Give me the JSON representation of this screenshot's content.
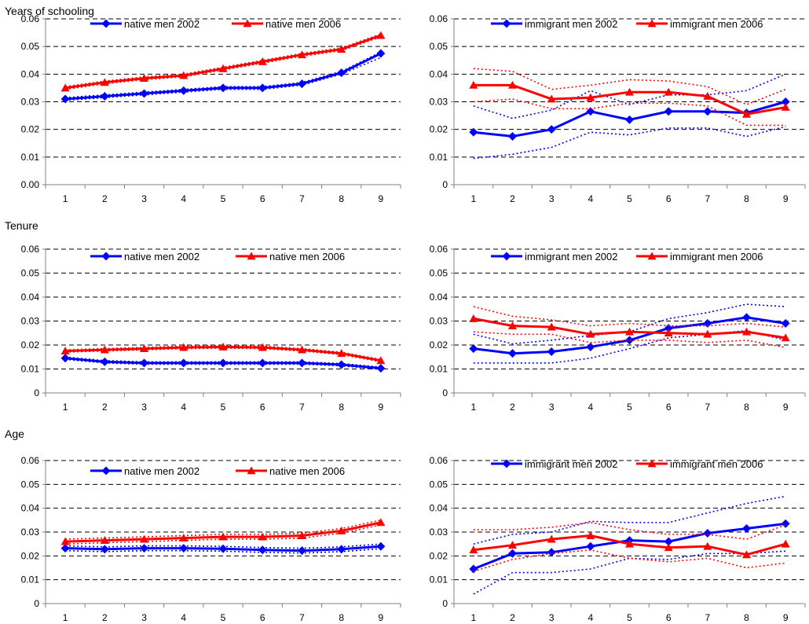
{
  "sections": [
    {
      "title": "Years of schooling"
    },
    {
      "title": "Tenure"
    },
    {
      "title": "Age"
    }
  ],
  "colors": {
    "series_2002": "#0000ff",
    "series_2006": "#ff0000",
    "grid": "#000000",
    "axis": "#808080"
  },
  "chart_data": [
    {
      "type": "line",
      "title": "",
      "x": [
        1,
        2,
        3,
        4,
        5,
        6,
        7,
        8,
        9
      ],
      "ylim": [
        0,
        0.06
      ],
      "yticks": [
        "0.00",
        "0.01",
        "0.02",
        "0.03",
        "0.04",
        "0.05",
        "0.06"
      ],
      "legend_position": "top",
      "series": [
        {
          "name": "native men 2002",
          "color": "#0000ff",
          "marker": "diamond",
          "values": [
            0.031,
            0.032,
            0.033,
            0.034,
            0.035,
            0.035,
            0.0365,
            0.0405,
            0.0475
          ],
          "ci_lower": [
            0.0305,
            0.0315,
            0.0325,
            0.0335,
            0.0345,
            0.0345,
            0.036,
            0.04,
            0.046
          ],
          "ci_upper": [
            0.0315,
            0.0325,
            0.0335,
            0.0345,
            0.0355,
            0.0355,
            0.037,
            0.041,
            0.048
          ]
        },
        {
          "name": "native men 2006",
          "color": "#ff0000",
          "marker": "triangle",
          "values": [
            0.035,
            0.037,
            0.0385,
            0.0395,
            0.042,
            0.0445,
            0.047,
            0.049,
            0.054
          ],
          "ci_lower": [
            0.0345,
            0.0365,
            0.038,
            0.039,
            0.0415,
            0.044,
            0.0465,
            0.0485,
            0.0535
          ],
          "ci_upper": [
            0.0355,
            0.0375,
            0.039,
            0.04,
            0.0425,
            0.045,
            0.0475,
            0.0495,
            0.0545
          ]
        }
      ]
    },
    {
      "type": "line",
      "title": "",
      "x": [
        1,
        2,
        3,
        4,
        5,
        6,
        7,
        8,
        9
      ],
      "ylim": [
        0,
        0.06
      ],
      "yticks": [
        "0",
        "0.01",
        "0.02",
        "0.03",
        "0.04",
        "0.05",
        "0.06"
      ],
      "legend_position": "top",
      "series": [
        {
          "name": "immigrant men 2002",
          "color": "#0000ff",
          "marker": "diamond",
          "values": [
            0.019,
            0.0175,
            0.02,
            0.0265,
            0.0235,
            0.0265,
            0.0265,
            0.026,
            0.03
          ],
          "ci_lower": [
            0.0095,
            0.011,
            0.0135,
            0.019,
            0.018,
            0.0205,
            0.0205,
            0.0175,
            0.021
          ],
          "ci_upper": [
            0.0285,
            0.024,
            0.027,
            0.034,
            0.029,
            0.0325,
            0.0325,
            0.034,
            0.04
          ]
        },
        {
          "name": "immigrant men 2006",
          "color": "#ff0000",
          "marker": "triangle",
          "values": [
            0.036,
            0.036,
            0.031,
            0.0315,
            0.0335,
            0.0335,
            0.032,
            0.0255,
            0.028
          ],
          "ci_lower": [
            0.03,
            0.031,
            0.0275,
            0.0275,
            0.0295,
            0.0295,
            0.0285,
            0.0215,
            0.0215
          ],
          "ci_upper": [
            0.042,
            0.041,
            0.0345,
            0.036,
            0.038,
            0.0375,
            0.0355,
            0.029,
            0.0345
          ]
        }
      ]
    },
    {
      "type": "line",
      "title": "",
      "x": [
        1,
        2,
        3,
        4,
        5,
        6,
        7,
        8,
        9
      ],
      "ylim": [
        0,
        0.06
      ],
      "yticks": [
        "0",
        "0.01",
        "0.02",
        "0.03",
        "0.04",
        "0.05",
        "0.06"
      ],
      "legend_position": "top",
      "series": [
        {
          "name": "native men 2002",
          "color": "#0000ff",
          "marker": "diamond",
          "values": [
            0.0145,
            0.013,
            0.0125,
            0.0125,
            0.0125,
            0.0125,
            0.0125,
            0.0118,
            0.0103
          ],
          "ci_lower": [
            0.014,
            0.0125,
            0.012,
            0.012,
            0.012,
            0.012,
            0.012,
            0.0113,
            0.0098
          ],
          "ci_upper": [
            0.015,
            0.0135,
            0.013,
            0.013,
            0.013,
            0.013,
            0.013,
            0.0123,
            0.0108
          ]
        },
        {
          "name": "native men 2006",
          "color": "#ff0000",
          "marker": "triangle",
          "values": [
            0.0175,
            0.018,
            0.0185,
            0.019,
            0.0192,
            0.019,
            0.018,
            0.0165,
            0.0135
          ],
          "ci_lower": [
            0.017,
            0.0175,
            0.018,
            0.0185,
            0.0187,
            0.0185,
            0.0175,
            0.016,
            0.013
          ],
          "ci_upper": [
            0.018,
            0.0185,
            0.019,
            0.0195,
            0.0197,
            0.0195,
            0.0185,
            0.017,
            0.014
          ]
        }
      ]
    },
    {
      "type": "line",
      "title": "",
      "x": [
        1,
        2,
        3,
        4,
        5,
        6,
        7,
        8,
        9
      ],
      "ylim": [
        0,
        0.06
      ],
      "yticks": [
        "0",
        "0.01",
        "0.02",
        "0.03",
        "0.04",
        "0.05",
        "0.06"
      ],
      "legend_position": "top",
      "series": [
        {
          "name": "immigrant men 2002",
          "color": "#0000ff",
          "marker": "diamond",
          "values": [
            0.0185,
            0.0165,
            0.0172,
            0.0192,
            0.022,
            0.027,
            0.029,
            0.0315,
            0.029
          ],
          "ci_lower": [
            0.0125,
            0.0125,
            0.0125,
            0.0145,
            0.0185,
            0.023,
            0.0245,
            0.026,
            0.022
          ],
          "ci_upper": [
            0.0245,
            0.0205,
            0.022,
            0.024,
            0.0255,
            0.031,
            0.0335,
            0.037,
            0.036
          ]
        },
        {
          "name": "immigrant men 2006",
          "color": "#ff0000",
          "marker": "triangle",
          "values": [
            0.031,
            0.028,
            0.0275,
            0.0245,
            0.0255,
            0.025,
            0.0245,
            0.0255,
            0.023
          ],
          "ci_lower": [
            0.0255,
            0.0245,
            0.0245,
            0.021,
            0.022,
            0.022,
            0.021,
            0.022,
            0.019
          ],
          "ci_upper": [
            0.036,
            0.032,
            0.0305,
            0.028,
            0.029,
            0.028,
            0.028,
            0.029,
            0.0275
          ]
        }
      ]
    },
    {
      "type": "line",
      "title": "",
      "x": [
        1,
        2,
        3,
        4,
        5,
        6,
        7,
        8,
        9
      ],
      "ylim": [
        0,
        0.06
      ],
      "yticks": [
        "0",
        "0.01",
        "0.02",
        "0.03",
        "0.04",
        "0.05",
        "0.06"
      ],
      "legend_position": "top",
      "series": [
        {
          "name": "native men 2002",
          "color": "#0000ff",
          "marker": "diamond",
          "values": [
            0.0232,
            0.0228,
            0.0232,
            0.0232,
            0.023,
            0.0225,
            0.0222,
            0.0228,
            0.024
          ],
          "ci_lower": [
            0.0222,
            0.0218,
            0.0222,
            0.0222,
            0.022,
            0.0215,
            0.0212,
            0.0218,
            0.023
          ],
          "ci_upper": [
            0.0242,
            0.0238,
            0.0242,
            0.0242,
            0.024,
            0.0235,
            0.0232,
            0.0238,
            0.025
          ]
        },
        {
          "name": "native men 2006",
          "color": "#ff0000",
          "marker": "triangle",
          "values": [
            0.026,
            0.0265,
            0.027,
            0.0275,
            0.028,
            0.028,
            0.0285,
            0.0305,
            0.034
          ],
          "ci_lower": [
            0.025,
            0.0255,
            0.026,
            0.0265,
            0.027,
            0.027,
            0.0275,
            0.0295,
            0.033
          ],
          "ci_upper": [
            0.027,
            0.0275,
            0.028,
            0.0285,
            0.029,
            0.029,
            0.0295,
            0.0315,
            0.035
          ]
        }
      ]
    },
    {
      "type": "line",
      "title": "",
      "x": [
        1,
        2,
        3,
        4,
        5,
        6,
        7,
        8,
        9
      ],
      "ylim": [
        0,
        0.06
      ],
      "yticks": [
        "0",
        "0.01",
        "0.02",
        "0.03",
        "0.04",
        "0.05",
        "0.06"
      ],
      "legend_position": "top",
      "series": [
        {
          "name": "immigrant men 2002",
          "color": "#0000ff",
          "marker": "diamond",
          "values": [
            0.0145,
            0.021,
            0.0215,
            0.024,
            0.0265,
            0.026,
            0.0295,
            0.0315,
            0.0335
          ],
          "ci_lower": [
            0.004,
            0.013,
            0.013,
            0.0145,
            0.019,
            0.0185,
            0.021,
            0.021,
            0.022
          ],
          "ci_upper": [
            0.025,
            0.029,
            0.03,
            0.0345,
            0.034,
            0.034,
            0.038,
            0.042,
            0.045
          ]
        },
        {
          "name": "immigrant men 2006",
          "color": "#ff0000",
          "marker": "triangle",
          "values": [
            0.0225,
            0.0245,
            0.027,
            0.0285,
            0.025,
            0.0235,
            0.024,
            0.0205,
            0.025
          ],
          "ci_lower": [
            0.0135,
            0.0185,
            0.021,
            0.0225,
            0.019,
            0.0175,
            0.019,
            0.015,
            0.017
          ],
          "ci_upper": [
            0.031,
            0.031,
            0.032,
            0.034,
            0.031,
            0.029,
            0.029,
            0.027,
            0.033
          ]
        }
      ]
    }
  ]
}
